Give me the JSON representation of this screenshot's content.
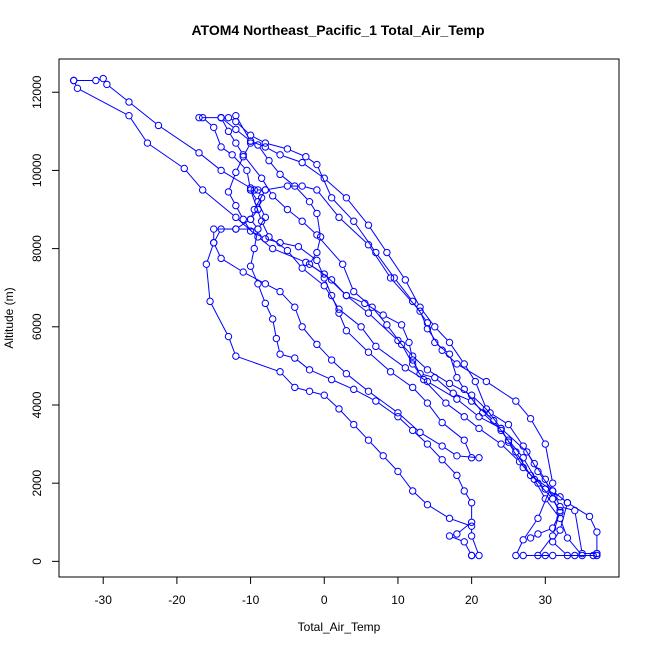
{
  "chart_data": {
    "type": "line",
    "title": "ATOM4 Northeast_Pacific_1 Total_Air_Temp",
    "xlabel": "Total_Air_Temp",
    "ylabel": "Altitude (m)",
    "xlim": [
      -36,
      40
    ],
    "ylim": [
      -400,
      12850
    ],
    "xticks": [
      -30,
      -20,
      -10,
      0,
      10,
      20,
      30
    ],
    "yticks": [
      0,
      2000,
      4000,
      6000,
      8000,
      10000,
      12000
    ],
    "grid": false,
    "marker": "open-circle",
    "color": "#0000ff",
    "series": [
      {
        "points": [
          [
            -34,
            12300
          ],
          [
            -31,
            12300
          ],
          [
            -30,
            12350
          ],
          [
            -29.5,
            12200
          ],
          [
            -26.5,
            11750
          ],
          [
            -22.5,
            11150
          ],
          [
            -17,
            10450
          ],
          [
            -14,
            10000
          ],
          [
            -10,
            9550
          ],
          [
            -9.5,
            9500
          ],
          [
            -8,
            9500
          ],
          [
            -5,
            9600
          ],
          [
            -3,
            9600
          ],
          [
            -1,
            9500
          ],
          [
            2,
            8800
          ],
          [
            6,
            8100
          ],
          [
            9,
            7250
          ],
          [
            13,
            6400
          ],
          [
            14,
            5950
          ],
          [
            16,
            5400
          ],
          [
            18,
            5050
          ],
          [
            22,
            4600
          ],
          [
            26,
            4100
          ],
          [
            28,
            3650
          ],
          [
            30,
            3000
          ],
          [
            31,
            2000
          ],
          [
            29,
            1100
          ],
          [
            27,
            550
          ],
          [
            26,
            150
          ],
          [
            27,
            150
          ],
          [
            31,
            150
          ],
          [
            36.5,
            150
          ]
        ]
      },
      {
        "points": [
          [
            -34,
            12300
          ],
          [
            -33.5,
            12100
          ],
          [
            -26.5,
            11400
          ],
          [
            -24,
            10700
          ],
          [
            -19,
            10050
          ],
          [
            -16.5,
            9500
          ],
          [
            -12,
            8800
          ],
          [
            -9,
            8300
          ],
          [
            -7,
            8000
          ],
          [
            -2.5,
            7650
          ],
          [
            0,
            7350
          ],
          [
            3,
            6800
          ],
          [
            6,
            6350
          ],
          [
            10,
            5650
          ],
          [
            12,
            5250
          ],
          [
            14,
            4900
          ],
          [
            17,
            4550
          ],
          [
            20,
            4250
          ],
          [
            22.5,
            3800
          ],
          [
            25,
            3500
          ],
          [
            27,
            2950
          ],
          [
            28.5,
            2500
          ],
          [
            30,
            2100
          ],
          [
            31,
            1600
          ],
          [
            32,
            1300
          ],
          [
            31,
            650
          ],
          [
            29,
            150
          ],
          [
            30,
            150
          ]
        ]
      },
      {
        "points": [
          [
            -17,
            11350
          ],
          [
            -14,
            11350
          ],
          [
            -13,
            11350
          ],
          [
            -12,
            11250
          ],
          [
            -10,
            10900
          ],
          [
            -8,
            10700
          ],
          [
            -5,
            10550
          ],
          [
            -2.5,
            10350
          ],
          [
            -1,
            10150
          ],
          [
            1,
            9300
          ],
          [
            4,
            8700
          ],
          [
            7,
            7900
          ],
          [
            9.5,
            7250
          ],
          [
            12,
            6650
          ],
          [
            14,
            6100
          ],
          [
            15,
            5600
          ],
          [
            17,
            5300
          ],
          [
            18,
            4700
          ],
          [
            19,
            4400
          ],
          [
            21.5,
            3800
          ],
          [
            24,
            3350
          ],
          [
            26,
            2800
          ],
          [
            28,
            2200
          ],
          [
            31,
            1800
          ],
          [
            32,
            1400
          ],
          [
            34,
            1300
          ],
          [
            35,
            200
          ],
          [
            37,
            200
          ]
        ]
      },
      {
        "points": [
          [
            -14,
            11350
          ],
          [
            -13,
            11000
          ],
          [
            -12,
            10700
          ],
          [
            -11,
            10400
          ],
          [
            -8.5,
            9800
          ],
          [
            -7,
            9350
          ],
          [
            -5,
            9000
          ],
          [
            -3,
            8700
          ],
          [
            -1,
            8350
          ],
          [
            2.5,
            7600
          ],
          [
            4,
            6900
          ],
          [
            6.5,
            6500
          ],
          [
            8.5,
            6050
          ],
          [
            10.5,
            5550
          ],
          [
            12,
            5050
          ],
          [
            13.5,
            4650
          ],
          [
            16.5,
            4050
          ],
          [
            19,
            3700
          ],
          [
            21,
            3400
          ],
          [
            24,
            3000
          ],
          [
            26.5,
            2550
          ],
          [
            28.5,
            2100
          ],
          [
            30,
            1600
          ],
          [
            32,
            1100
          ],
          [
            33,
            600
          ],
          [
            35,
            150
          ],
          [
            37,
            150
          ]
        ]
      },
      {
        "points": [
          [
            -16.5,
            11350
          ],
          [
            -15,
            11100
          ],
          [
            -14,
            10600
          ],
          [
            -12.5,
            10400
          ],
          [
            -10.5,
            10000
          ],
          [
            -10,
            9500
          ],
          [
            -8.5,
            8700
          ],
          [
            -7.5,
            8300
          ],
          [
            -5,
            7950
          ],
          [
            -3,
            7500
          ],
          [
            0,
            7050
          ],
          [
            2,
            6450
          ],
          [
            5,
            6000
          ],
          [
            7,
            5500
          ],
          [
            11,
            4950
          ],
          [
            14,
            4600
          ],
          [
            18,
            4150
          ],
          [
            21,
            3700
          ],
          [
            24,
            3400
          ],
          [
            27.5,
            2800
          ],
          [
            29,
            2300
          ],
          [
            31,
            1800
          ],
          [
            33,
            1500
          ],
          [
            36,
            1150
          ],
          [
            37,
            750
          ],
          [
            37,
            200
          ]
        ]
      },
      {
        "points": [
          [
            -14,
            11350
          ],
          [
            -12,
            11050
          ],
          [
            -10,
            10750
          ],
          [
            -8,
            10600
          ],
          [
            -6,
            10400
          ],
          [
            -3,
            10200
          ],
          [
            0,
            9800
          ],
          [
            3,
            9300
          ],
          [
            6,
            8600
          ],
          [
            8.5,
            7900
          ],
          [
            11,
            7200
          ],
          [
            13,
            6500
          ],
          [
            15,
            6000
          ],
          [
            17,
            5600
          ],
          [
            19,
            5050
          ],
          [
            20.5,
            4600
          ],
          [
            22,
            3900
          ],
          [
            24,
            3400
          ],
          [
            25,
            3050
          ],
          [
            27,
            2400
          ],
          [
            30,
            1850
          ],
          [
            32,
            1650
          ],
          [
            33,
            1500
          ],
          [
            32,
            800
          ],
          [
            31,
            500
          ],
          [
            33,
            150
          ],
          [
            34,
            150
          ]
        ]
      },
      {
        "points": [
          [
            -12,
            11400
          ],
          [
            -10,
            10750
          ],
          [
            -9,
            10650
          ],
          [
            -7.5,
            10250
          ],
          [
            -6,
            9900
          ],
          [
            -4,
            9600
          ],
          [
            -2,
            9200
          ],
          [
            -1,
            8900
          ],
          [
            -0.5,
            8300
          ],
          [
            -1,
            7900
          ],
          [
            -2,
            7600
          ],
          [
            1,
            7200
          ],
          [
            3,
            6800
          ],
          [
            5.5,
            6600
          ],
          [
            8,
            6300
          ],
          [
            10.5,
            6050
          ],
          [
            11.5,
            5600
          ],
          [
            12,
            5150
          ],
          [
            13,
            4800
          ],
          [
            15,
            4700
          ],
          [
            17.5,
            4300
          ],
          [
            20,
            4100
          ],
          [
            23,
            3600
          ],
          [
            25,
            3100
          ],
          [
            27,
            2650
          ],
          [
            29,
            2000
          ],
          [
            31,
            1600
          ],
          [
            32,
            1250
          ],
          [
            31,
            850
          ],
          [
            29,
            700
          ],
          [
            28,
            600
          ]
        ]
      },
      {
        "points": [
          [
            -10,
            10700
          ],
          [
            -11,
            10350
          ],
          [
            -12,
            9950
          ],
          [
            -13,
            9450
          ],
          [
            -12,
            9100
          ],
          [
            -11,
            8750
          ],
          [
            -10,
            8450
          ],
          [
            -8,
            8250
          ],
          [
            -6,
            8150
          ],
          [
            -3.5,
            8050
          ],
          [
            -1,
            7700
          ],
          [
            0,
            7250
          ],
          [
            1,
            6800
          ],
          [
            2,
            6350
          ],
          [
            3,
            5900
          ],
          [
            6,
            5350
          ],
          [
            9,
            4850
          ],
          [
            12,
            4450
          ],
          [
            14,
            4050
          ],
          [
            16,
            3550
          ],
          [
            19,
            3100
          ],
          [
            20,
            2650
          ]
        ]
      },
      {
        "points": [
          [
            -9,
            9500
          ],
          [
            -8.5,
            9300
          ],
          [
            -9,
            9000
          ],
          [
            -10,
            8750
          ],
          [
            -12,
            8500
          ],
          [
            -15,
            8500
          ],
          [
            -15,
            8150
          ],
          [
            -14,
            7750
          ],
          [
            -11,
            7400
          ],
          [
            -8,
            7100
          ],
          [
            -6,
            6900
          ],
          [
            -4,
            6500
          ],
          [
            -3,
            6000
          ],
          [
            -1,
            5550
          ],
          [
            1,
            5150
          ],
          [
            3,
            4800
          ],
          [
            6,
            4350
          ],
          [
            10,
            3800
          ],
          [
            13,
            3300
          ],
          [
            16,
            2950
          ],
          [
            18,
            2700
          ],
          [
            21,
            2650
          ]
        ]
      },
      {
        "points": [
          [
            -10,
            9500
          ],
          [
            -9,
            9200
          ],
          [
            -8,
            8800
          ],
          [
            -9,
            8500
          ],
          [
            -12,
            8500
          ],
          [
            -14,
            8500
          ],
          [
            -15,
            8150
          ],
          [
            -16,
            7600
          ],
          [
            -15.5,
            6650
          ],
          [
            -13,
            5750
          ],
          [
            -12,
            5250
          ],
          [
            -6,
            4850
          ],
          [
            -4,
            4450
          ],
          [
            -2,
            4350
          ],
          [
            0,
            4250
          ],
          [
            2,
            3900
          ],
          [
            4,
            3500
          ],
          [
            6,
            3100
          ],
          [
            8,
            2700
          ],
          [
            10,
            2300
          ],
          [
            12,
            1800
          ],
          [
            14,
            1450
          ],
          [
            17,
            1100
          ],
          [
            20,
            900
          ],
          [
            20,
            650
          ],
          [
            21,
            150
          ],
          [
            20,
            150
          ]
        ]
      },
      {
        "points": [
          [
            -8,
            9500
          ],
          [
            -9.5,
            9000
          ],
          [
            -10,
            8750
          ],
          [
            -9,
            8500
          ],
          [
            -9.5,
            8000
          ],
          [
            -10,
            7550
          ],
          [
            -9,
            7100
          ],
          [
            -8,
            6600
          ],
          [
            -7,
            6200
          ],
          [
            -6.5,
            5700
          ],
          [
            -6,
            5300
          ],
          [
            -4,
            5200
          ],
          [
            -2,
            4900
          ],
          [
            1,
            4650
          ],
          [
            4,
            4400
          ],
          [
            7,
            4100
          ],
          [
            10,
            3700
          ],
          [
            12,
            3350
          ],
          [
            14,
            3000
          ],
          [
            16,
            2600
          ],
          [
            18,
            2200
          ],
          [
            19,
            1800
          ],
          [
            20,
            1500
          ],
          [
            20,
            1000
          ],
          [
            18,
            700
          ],
          [
            17,
            650
          ],
          [
            19,
            500
          ],
          [
            20,
            150
          ]
        ]
      }
    ]
  }
}
